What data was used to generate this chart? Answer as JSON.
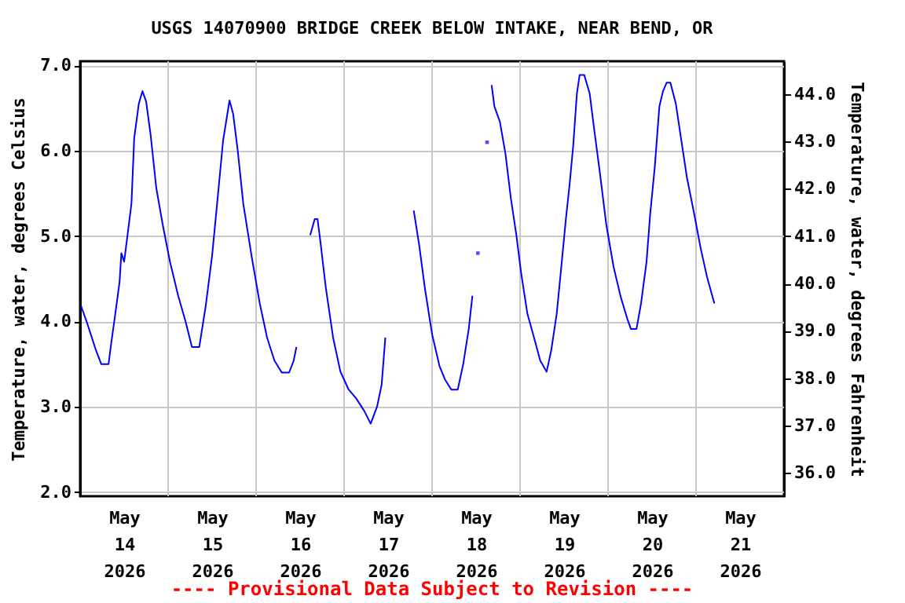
{
  "chart_data": {
    "type": "line",
    "title": "USGS 14070900 BRIDGE CREEK BELOW INTAKE, NEAR BEND, OR",
    "ylabel": "Temperature, water, degrees Celsius",
    "y2label": "Temperature, water, degrees Fahrenheit",
    "annotations": [
      "---- Provisional Data Subject to Revision ----"
    ],
    "xlim": [
      "2026-05-14T00:00",
      "2026-05-22T00:00"
    ],
    "xticks": [
      {
        "value": "2026-05-15T00:00",
        "label": null
      },
      {
        "value": "2026-05-16T00:00",
        "label": null
      },
      {
        "value": "2026-05-17T00:00",
        "label": null
      },
      {
        "value": "2026-05-18T00:00",
        "label": null
      },
      {
        "value": "2026-05-19T00:00",
        "label": null
      },
      {
        "value": "2026-05-20T00:00",
        "label": null
      },
      {
        "value": "2026-05-21T00:00",
        "label": null
      },
      {
        "value": "2026-05-14T12:00",
        "label": "May\n14\n2026"
      },
      {
        "value": "2026-05-15T12:00",
        "label": "May\n15\n2026"
      },
      {
        "value": "2026-05-16T12:00",
        "label": "May\n16\n2026"
      },
      {
        "value": "2026-05-17T12:00",
        "label": "May\n17\n2026"
      },
      {
        "value": "2026-05-18T12:00",
        "label": "May\n18\n2026"
      },
      {
        "value": "2026-05-19T12:00",
        "label": "May\n19\n2026"
      },
      {
        "value": "2026-05-20T12:00",
        "label": "May\n20\n2026"
      },
      {
        "value": "2026-05-21T12:00",
        "label": "May\n21\n2026"
      }
    ],
    "ylim": [
      1.95,
      7.05
    ],
    "yticks": [
      {
        "value": 2,
        "label": "2.0"
      },
      {
        "value": 3,
        "label": "3.0"
      },
      {
        "value": 4,
        "label": "4.0"
      },
      {
        "value": 5,
        "label": "5.0"
      },
      {
        "value": 6,
        "label": "6.0"
      },
      {
        "value": 7,
        "label": "7.0"
      }
    ],
    "y2lim": [
      35.51,
      44.69
    ],
    "y2ticks": [
      {
        "value": 36,
        "label": "36.0"
      },
      {
        "value": 37,
        "label": "37.0"
      },
      {
        "value": 38,
        "label": "38.0"
      },
      {
        "value": 39,
        "label": "39.0"
      },
      {
        "value": 40,
        "label": "40.0"
      },
      {
        "value": 41,
        "label": "41.0"
      },
      {
        "value": 42,
        "label": "42.0"
      },
      {
        "value": 43,
        "label": "43.0"
      },
      {
        "value": 44,
        "label": "44.0"
      }
    ],
    "grid": true,
    "series": [
      {
        "color": "#0000ff",
        "x": [
          "2026-05-14T00:15",
          "2026-05-14T01:45",
          "2026-05-14T04:15",
          "2026-05-14T05:45",
          "2026-05-14T07:45",
          "2026-05-14T08:30",
          "2026-05-14T09:30",
          "2026-05-14T10:45",
          "2026-05-14T11:15",
          "2026-05-14T12:00",
          "2026-05-14T12:45",
          "2026-05-14T14:00",
          "2026-05-14T14:45",
          "2026-05-14T16:00",
          "2026-05-14T17:00",
          "2026-05-14T18:00",
          "2026-05-14T19:15",
          "2026-05-14T20:45",
          "2026-05-14T22:30",
          "2026-05-15T00:30",
          "2026-05-15T02:45",
          "2026-05-15T04:45",
          "2026-05-15T06:30",
          "2026-05-15T08:30",
          "2026-05-15T10:15",
          "2026-05-15T12:00",
          "2026-05-15T13:30",
          "2026-05-15T15:00",
          "2026-05-15T16:45",
          "2026-05-15T17:45",
          "2026-05-15T19:00",
          "2026-05-15T20:30",
          "2026-05-15T22:45",
          "2026-05-16T01:00",
          "2026-05-16T03:00",
          "2026-05-16T05:00",
          "2026-05-16T07:00",
          "2026-05-16T09:00",
          "2026-05-16T10:15",
          "2026-05-16T11:00",
          "2026-05-16T12:00",
          "2026-05-16T14:45",
          "2026-05-16T16:00",
          "2026-05-16T16:45",
          "2026-05-16T17:30",
          "2026-05-16T19:00",
          "2026-05-16T21:00",
          "2026-05-16T23:00",
          "2026-05-17T01:15",
          "2026-05-17T03:15",
          "2026-05-17T05:30",
          "2026-05-17T07:15",
          "2026-05-17T09:00",
          "2026-05-17T10:15",
          "2026-05-17T11:15",
          "2026-05-17T13:00",
          "2026-05-17T19:00",
          "2026-05-17T20:30",
          "2026-05-17T22:00",
          "2026-05-18T00:00",
          "2026-05-18T02:00",
          "2026-05-18T03:30",
          "2026-05-18T05:15",
          "2026-05-18T07:00",
          "2026-05-18T08:30",
          "2026-05-18T10:00",
          "2026-05-18T11:00",
          "2026-05-18T13:00",
          "2026-05-18T16:15",
          "2026-05-18T17:00",
          "2026-05-18T18:30",
          "2026-05-18T20:00",
          "2026-05-18T21:30",
          "2026-05-18T23:00",
          "2026-05-19T00:15",
          "2026-05-19T02:00",
          "2026-05-19T04:00",
          "2026-05-19T05:30",
          "2026-05-19T07:15",
          "2026-05-19T08:30",
          "2026-05-19T10:00",
          "2026-05-19T11:15",
          "2026-05-19T12:30",
          "2026-05-19T13:30",
          "2026-05-19T14:30",
          "2026-05-19T15:30",
          "2026-05-19T16:15",
          "2026-05-19T17:30",
          "2026-05-19T19:00",
          "2026-05-19T20:15",
          "2026-05-19T21:45",
          "2026-05-19T23:30",
          "2026-05-20T01:30",
          "2026-05-20T03:30",
          "2026-05-20T05:15",
          "2026-05-20T06:15",
          "2026-05-20T07:45",
          "2026-05-20T09:00",
          "2026-05-20T10:30",
          "2026-05-20T11:30",
          "2026-05-20T12:45",
          "2026-05-20T14:00",
          "2026-05-20T15:00",
          "2026-05-20T16:00",
          "2026-05-20T17:00",
          "2026-05-20T18:30",
          "2026-05-20T20:00",
          "2026-05-20T21:30",
          "2026-05-20T23:30",
          "2026-05-21T01:15",
          "2026-05-21T03:00",
          "2026-05-21T05:00"
        ],
        "values": [
          4.18,
          4.0,
          3.67,
          3.5,
          3.5,
          3.75,
          4.06,
          4.46,
          4.8,
          4.7,
          4.95,
          5.38,
          6.15,
          6.55,
          6.7,
          6.58,
          6.18,
          5.57,
          5.14,
          4.7,
          4.3,
          4.0,
          3.7,
          3.7,
          4.18,
          4.77,
          5.44,
          6.12,
          6.59,
          6.43,
          6.0,
          5.38,
          4.77,
          4.21,
          3.81,
          3.54,
          3.4,
          3.4,
          3.54,
          3.7,
          null,
          5.01,
          5.2,
          5.2,
          4.95,
          4.4,
          3.81,
          3.41,
          3.2,
          3.1,
          2.95,
          2.8,
          3.0,
          3.26,
          3.81,
          null,
          5.3,
          4.89,
          4.4,
          3.85,
          3.48,
          3.32,
          3.2,
          3.2,
          3.5,
          3.91,
          4.3,
          null,
          6.77,
          6.52,
          6.34,
          5.97,
          5.44,
          5.01,
          4.58,
          4.09,
          3.78,
          3.54,
          3.41,
          3.66,
          4.09,
          4.64,
          5.2,
          5.6,
          6.06,
          6.67,
          6.89,
          6.89,
          6.67,
          6.24,
          5.75,
          5.14,
          4.64,
          4.28,
          4.03,
          3.91,
          3.91,
          4.21,
          4.7,
          5.26,
          5.81,
          6.52,
          6.7,
          6.8,
          6.8,
          6.55,
          6.12,
          5.69,
          5.26,
          4.86,
          4.52,
          4.21
        ]
      },
      {
        "type": "scatter",
        "color": "#0000ff",
        "marker": "square",
        "x": [
          "2026-05-18T12:30",
          "2026-05-18T15:00"
        ],
        "values": [
          4.8,
          6.1
        ]
      }
    ]
  }
}
